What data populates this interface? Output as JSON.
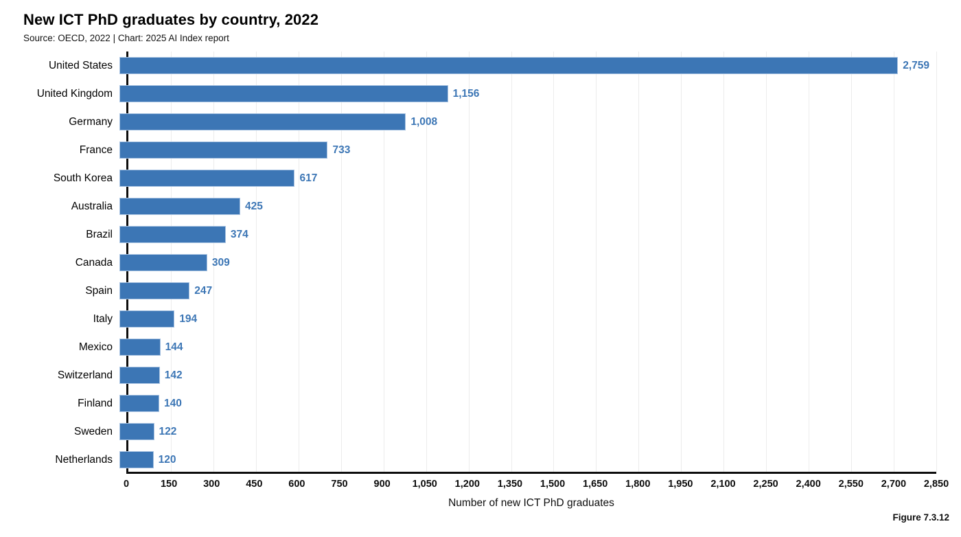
{
  "figure_label": "Figure 7.3.12",
  "chart_data": {
    "type": "bar",
    "orientation": "horizontal",
    "title": "New ICT PhD graduates by country, 2022",
    "subtitle": "Source: OECD, 2022 | Chart: 2025 AI Index report",
    "categories": [
      "United States",
      "United Kingdom",
      "Germany",
      "France",
      "South Korea",
      "Australia",
      "Brazil",
      "Canada",
      "Spain",
      "Italy",
      "Mexico",
      "Switzerland",
      "Finland",
      "Sweden",
      "Netherlands"
    ],
    "values": [
      2759,
      1156,
      1008,
      733,
      617,
      425,
      374,
      309,
      247,
      194,
      144,
      142,
      140,
      122,
      120
    ],
    "value_labels": [
      "2,759",
      "1,156",
      "1,008",
      "733",
      "617",
      "425",
      "374",
      "309",
      "247",
      "194",
      "144",
      "142",
      "140",
      "122",
      "120"
    ],
    "xlabel": "Number of new ICT PhD graduates",
    "xlim": [
      0,
      2850
    ],
    "xticks": [
      0,
      150,
      300,
      450,
      600,
      750,
      900,
      1050,
      1200,
      1350,
      1500,
      1650,
      1800,
      1950,
      2100,
      2250,
      2400,
      2550,
      2700,
      2850
    ],
    "xtick_labels": [
      "0",
      "150",
      "300",
      "450",
      "600",
      "750",
      "900",
      "1,050",
      "1,200",
      "1,350",
      "1,500",
      "1,650",
      "1,800",
      "1,950",
      "2,100",
      "2,250",
      "2,400",
      "2,550",
      "2,700",
      "2,850"
    ],
    "grid": true,
    "legend": "none",
    "bar_color": "#3c76b5",
    "value_label_color": "#3c76b5"
  }
}
